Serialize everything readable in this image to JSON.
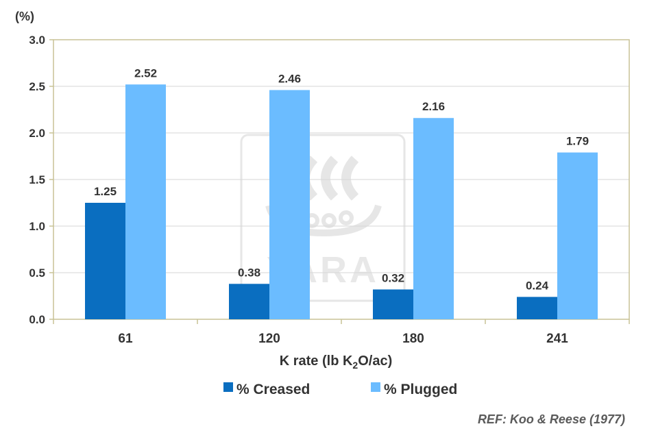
{
  "chart_data": {
    "type": "bar",
    "title": "",
    "ylabel_unit": "(%)",
    "xlabel": {
      "prefix": "K rate (lb K",
      "sub": "2",
      "suffix": "O/ac)"
    },
    "categories": [
      "61",
      "120",
      "180",
      "241"
    ],
    "series": [
      {
        "name": "% Creased",
        "values": [
          1.25,
          0.38,
          0.32,
          0.24
        ],
        "color": "#0a6ec0"
      },
      {
        "name": "% Plugged",
        "values": [
          2.52,
          2.46,
          2.16,
          1.79
        ],
        "color": "#6bbcff"
      }
    ],
    "data_labels": [
      [
        "1.25",
        "0.38",
        "0.32",
        "0.24"
      ],
      [
        "2.52",
        "2.46",
        "2.16",
        "1.79"
      ]
    ],
    "ylim": [
      0,
      3.0
    ],
    "yticks": [
      "0.0",
      "0.5",
      "1.0",
      "1.5",
      "2.0",
      "2.5",
      "3.0"
    ],
    "grid": true,
    "legend_position": "bottom",
    "frame_color": "#c8c296",
    "grid_color": "#d6d6d6"
  },
  "reference": "REF: Koo & Reese (1977)",
  "watermark": {
    "text": "YARA",
    "icon": "yara-viking-ship-logo"
  }
}
